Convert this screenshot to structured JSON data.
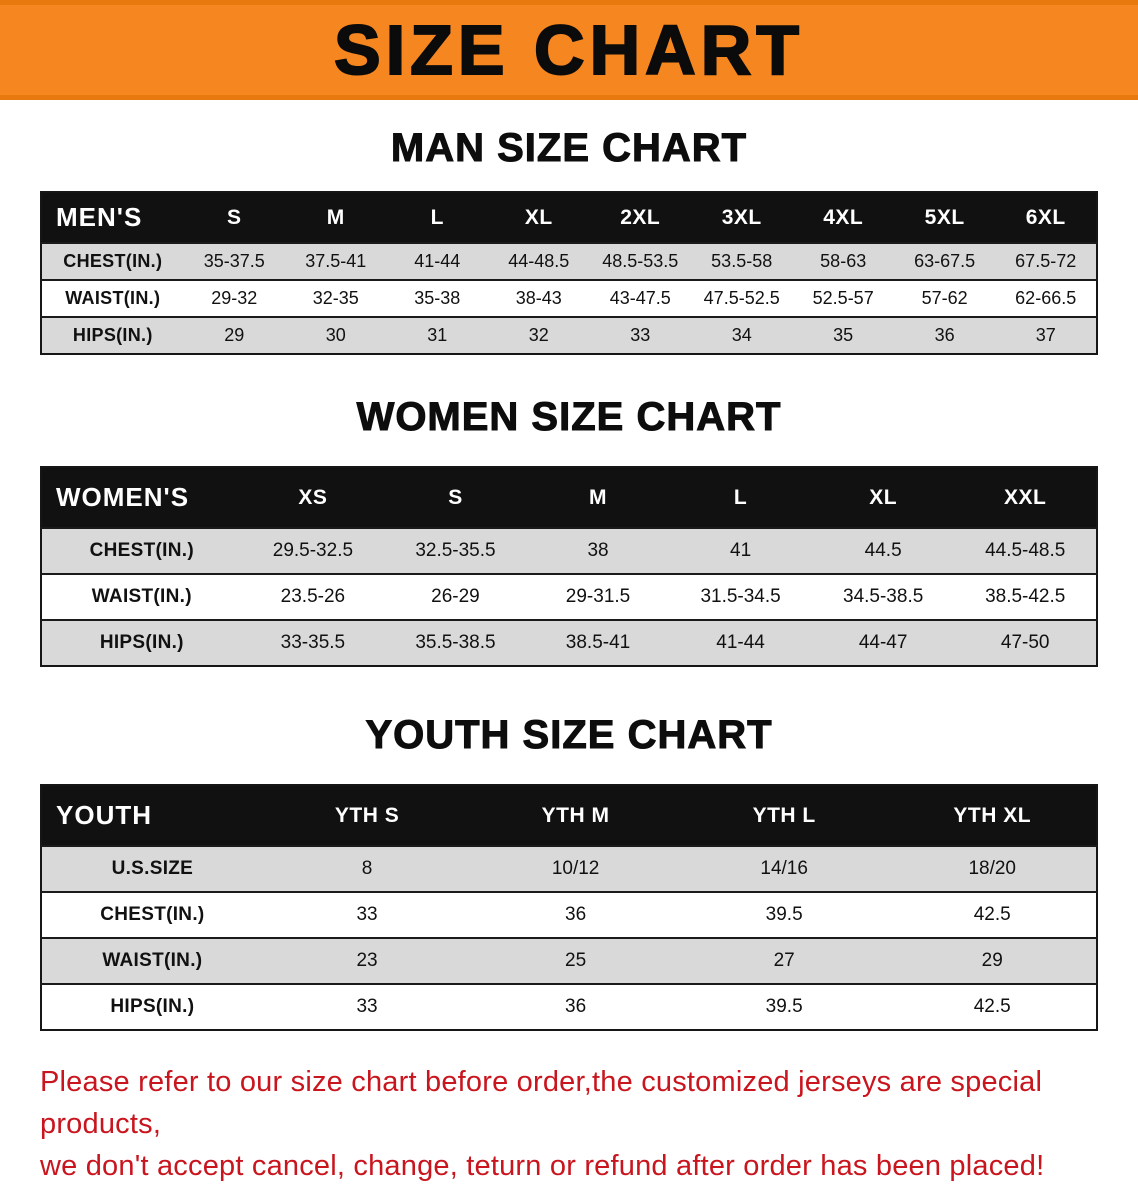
{
  "banner": {
    "title": "SIZE CHART"
  },
  "colors": {
    "banner_bg": "#f6861f",
    "header_bg": "#111111",
    "row_shade": "#d9d9d9",
    "disclaimer_red": "#c9151e"
  },
  "sections": [
    {
      "heading": "MAN SIZE CHART",
      "table": {
        "corner": "MEN'S",
        "columns": [
          "S",
          "M",
          "L",
          "XL",
          "2XL",
          "3XL",
          "4XL",
          "5XL",
          "6XL"
        ],
        "rows": [
          {
            "label": "CHEST(IN.)",
            "values": [
              "35-37.5",
              "37.5-41",
              "41-44",
              "44-48.5",
              "48.5-53.5",
              "53.5-58",
              "58-63",
              "63-67.5",
              "67.5-72"
            ]
          },
          {
            "label": "WAIST(IN.)",
            "values": [
              "29-32",
              "32-35",
              "35-38",
              "38-43",
              "43-47.5",
              "47.5-52.5",
              "52.5-57",
              "57-62",
              "62-66.5"
            ]
          },
          {
            "label": "HIPS(IN.)",
            "values": [
              "29",
              "30",
              "31",
              "32",
              "33",
              "34",
              "35",
              "36",
              "37"
            ]
          }
        ]
      }
    },
    {
      "heading": "WOMEN SIZE CHART",
      "table": {
        "corner": "WOMEN'S",
        "columns": [
          "XS",
          "S",
          "M",
          "L",
          "XL",
          "XXL"
        ],
        "rows": [
          {
            "label": "CHEST(IN.)",
            "values": [
              "29.5-32.5",
              "32.5-35.5",
              "38",
              "41",
              "44.5",
              "44.5-48.5"
            ]
          },
          {
            "label": "WAIST(IN.)",
            "values": [
              "23.5-26",
              "26-29",
              "29-31.5",
              "31.5-34.5",
              "34.5-38.5",
              "38.5-42.5"
            ]
          },
          {
            "label": "HIPS(IN.)",
            "values": [
              "33-35.5",
              "35.5-38.5",
              "38.5-41",
              "41-44",
              "44-47",
              "47-50"
            ]
          }
        ]
      }
    },
    {
      "heading": "YOUTH SIZE CHART",
      "table": {
        "corner": "YOUTH",
        "columns": [
          "YTH S",
          "YTH M",
          "YTH L",
          "YTH XL"
        ],
        "rows": [
          {
            "label": "U.S.SIZE",
            "values": [
              "8",
              "10/12",
              "14/16",
              "18/20"
            ]
          },
          {
            "label": "CHEST(IN.)",
            "values": [
              "33",
              "36",
              "39.5",
              "42.5"
            ]
          },
          {
            "label": "WAIST(IN.)",
            "values": [
              "23",
              "25",
              "27",
              "29"
            ]
          },
          {
            "label": "HIPS(IN.)",
            "values": [
              "33",
              "36",
              "39.5",
              "42.5"
            ]
          }
        ]
      }
    }
  ],
  "disclaimer": {
    "line1": "Please refer to our size chart before order,the customized jerseys are special products,",
    "line2": "we don't accept cancel, change, teturn or refund after order has been placed!"
  }
}
